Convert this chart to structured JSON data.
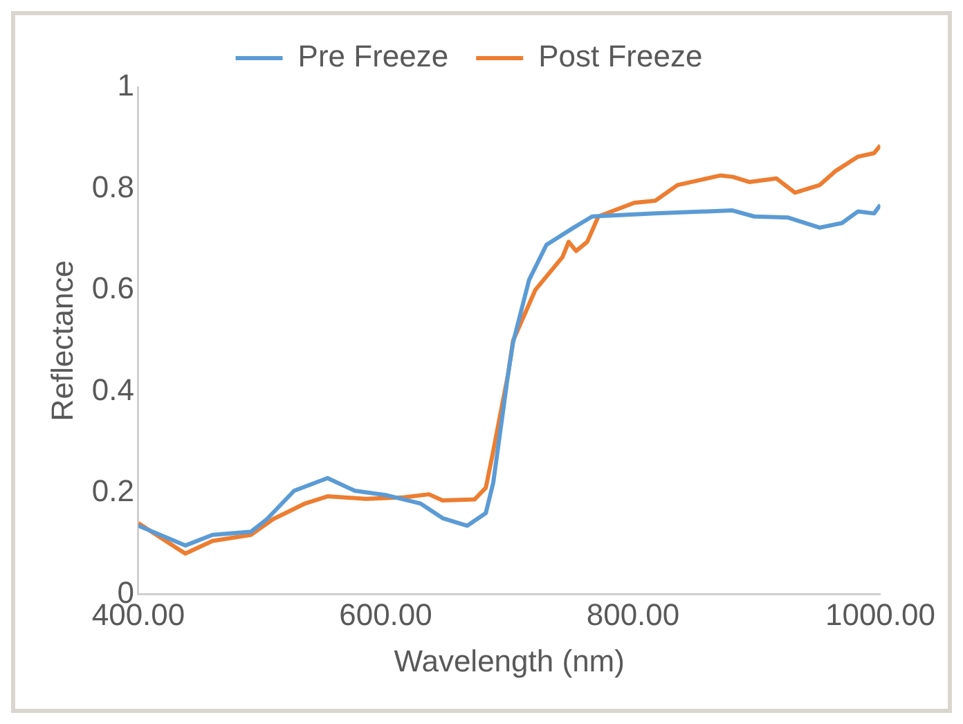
{
  "chart_data": {
    "type": "line",
    "xlabel": "Wavelength (nm)",
    "ylabel": "Reflectance",
    "xlim": [
      400,
      1000
    ],
    "xticks": [
      {
        "value": 400,
        "label": "400.00"
      },
      {
        "value": 600,
        "label": "600.00"
      },
      {
        "value": 800,
        "label": "800.00"
      },
      {
        "value": 1000,
        "label": "1000.00"
      }
    ],
    "ylim": [
      0,
      1
    ],
    "yticks": [
      0,
      0.2,
      0.4,
      0.6,
      0.8,
      1
    ],
    "grid": false,
    "legend": "top",
    "marker": "none",
    "line_style": "solid",
    "series": [
      {
        "name": "Pre Freeze",
        "color": "#5b9bd5",
        "x": [
          400,
          438,
          460,
          491,
          504,
          526,
          553,
          575,
          601,
          628,
          646,
          666,
          681,
          687,
          699,
          703,
          716,
          730,
          752,
          767,
          818,
          880,
          898,
          925,
          951,
          969,
          982,
          995,
          1000
        ],
        "values": [
          0.135,
          0.096,
          0.117,
          0.123,
          0.148,
          0.204,
          0.229,
          0.204,
          0.195,
          0.179,
          0.15,
          0.135,
          0.16,
          0.22,
          0.434,
          0.496,
          0.62,
          0.689,
          0.723,
          0.745,
          0.751,
          0.757,
          0.745,
          0.743,
          0.723,
          0.732,
          0.755,
          0.751,
          0.768
        ]
      },
      {
        "name": "Post Freeze",
        "color": "#ed7d31",
        "x": [
          400,
          438,
          460,
          491,
          509,
          535,
          553,
          584,
          615,
          635,
          646,
          672,
          681,
          686,
          699,
          703,
          721,
          743,
          748,
          754,
          763,
          772,
          801,
          818,
          836,
          871,
          881,
          894,
          916,
          931,
          951,
          964,
          982,
          995,
          1000
        ],
        "values": [
          0.14,
          0.08,
          0.105,
          0.117,
          0.148,
          0.179,
          0.193,
          0.188,
          0.191,
          0.197,
          0.185,
          0.187,
          0.21,
          0.27,
          0.434,
          0.5,
          0.6,
          0.665,
          0.695,
          0.677,
          0.695,
          0.745,
          0.772,
          0.776,
          0.807,
          0.826,
          0.823,
          0.813,
          0.82,
          0.792,
          0.807,
          0.835,
          0.863,
          0.87,
          0.885
        ]
      }
    ]
  }
}
